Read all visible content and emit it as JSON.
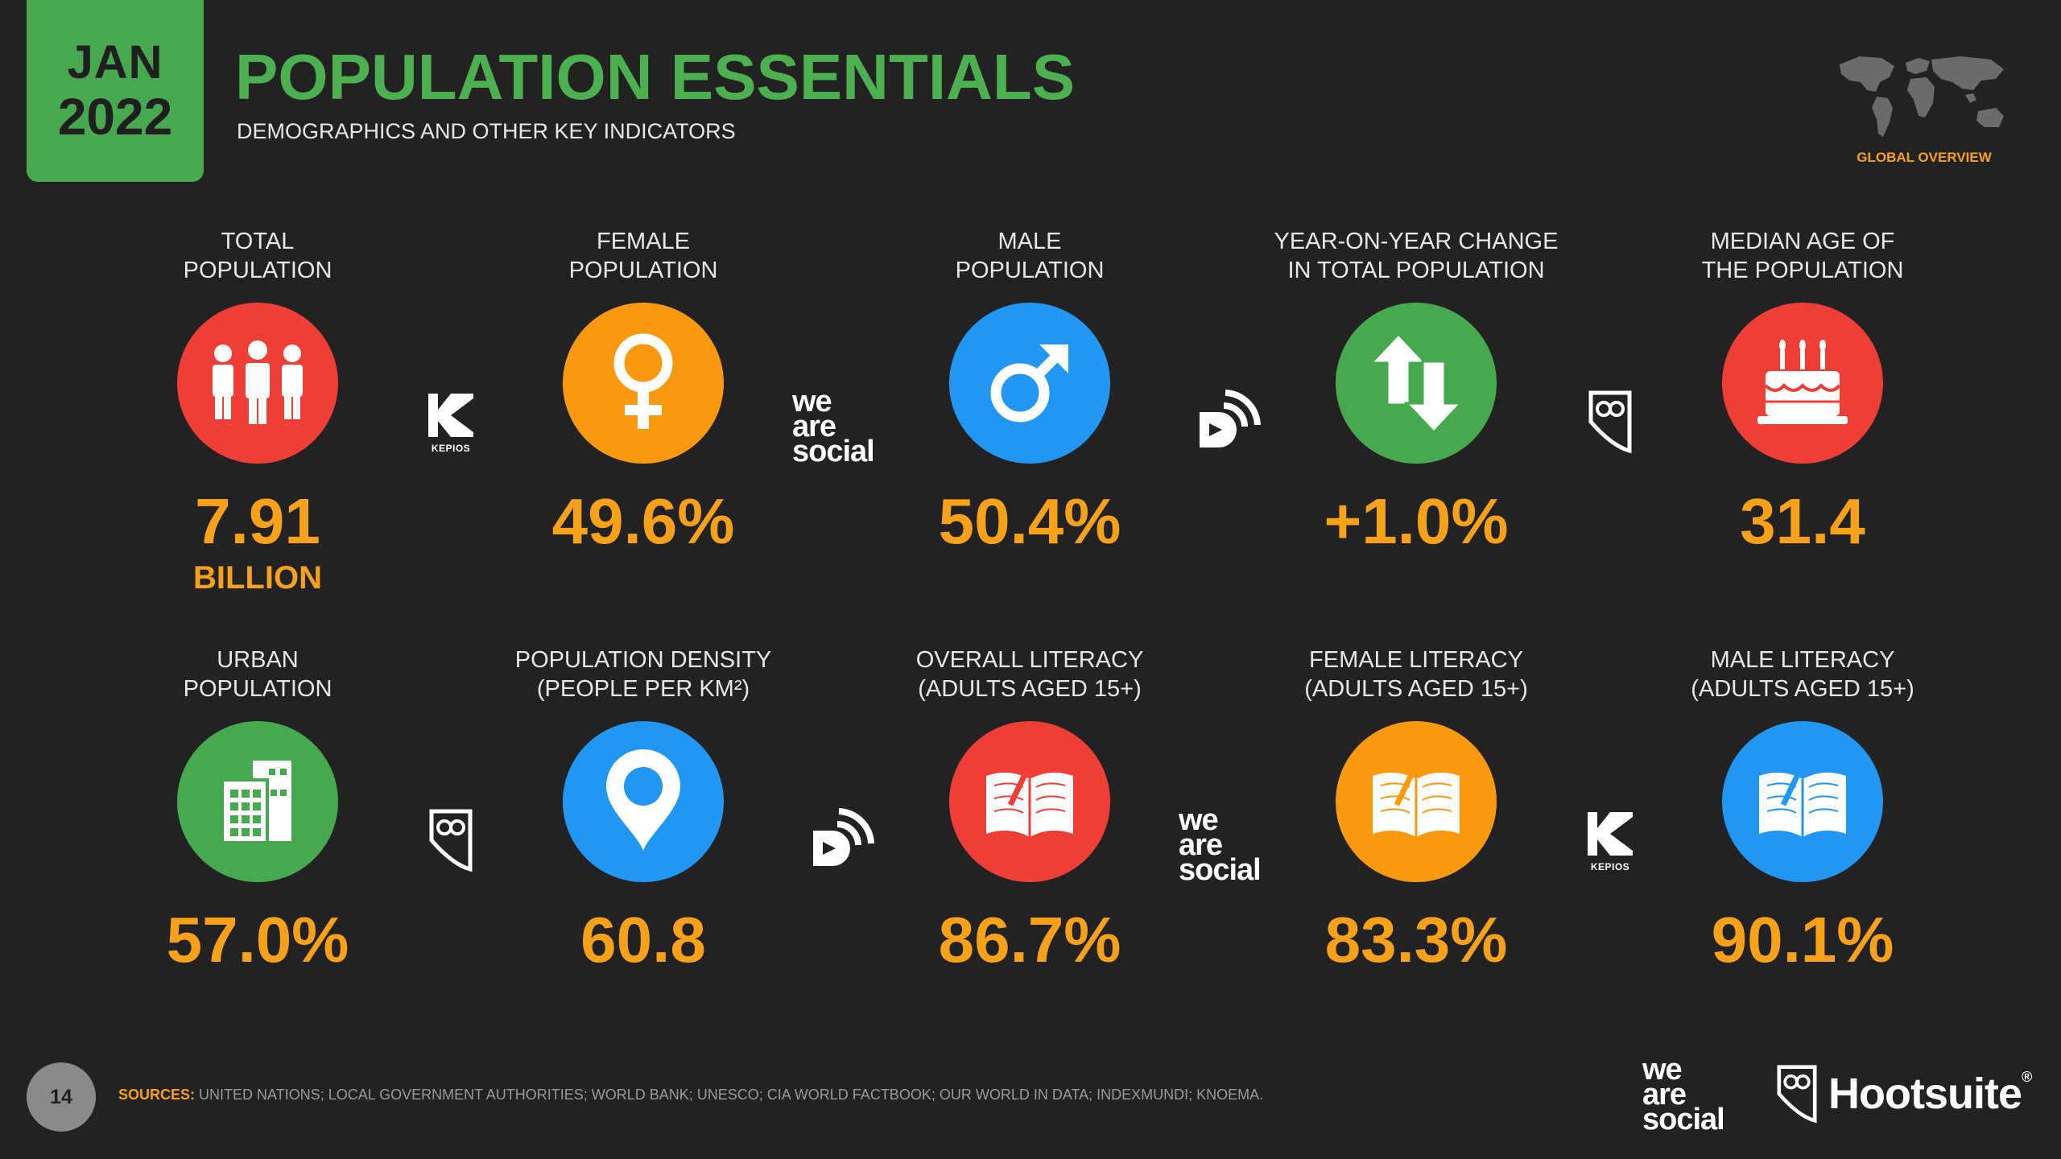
{
  "header": {
    "month": "JAN",
    "year": "2022",
    "title": "POPULATION ESSENTIALS",
    "subtitle": "DEMOGRAPHICS AND OTHER KEY INDICATORS",
    "overview_label": "GLOBAL OVERVIEW"
  },
  "colors": {
    "background": "#222222",
    "accent_green": "#46a94f",
    "value_orange": "#f7a11a",
    "red": "#ef3e36",
    "orange": "#f99a0e",
    "blue": "#2196f3",
    "green": "#46a94f"
  },
  "tiles": [
    {
      "label1": "TOTAL",
      "label2": "POPULATION",
      "value": "7.91",
      "unit": "BILLION",
      "icon": "people-icon",
      "color": "#ef3e36"
    },
    {
      "label1": "FEMALE",
      "label2": "POPULATION",
      "value": "49.6%",
      "icon": "female-symbol-icon",
      "color": "#f99a0e"
    },
    {
      "label1": "MALE",
      "label2": "POPULATION",
      "value": "50.4%",
      "icon": "male-symbol-icon",
      "color": "#2196f3"
    },
    {
      "label1": "YEAR-ON-YEAR CHANGE",
      "label2": "IN TOTAL POPULATION",
      "value": "+1.0%",
      "icon": "up-down-arrows-icon",
      "color": "#46a94f"
    },
    {
      "label1": "MEDIAN AGE OF",
      "label2": "THE POPULATION",
      "value": "31.4",
      "icon": "birthday-cake-icon",
      "color": "#ef3e36"
    },
    {
      "label1": "URBAN",
      "label2": "POPULATION",
      "value": "57.0%",
      "icon": "building-icon",
      "color": "#46a94f"
    },
    {
      "label1": "POPULATION DENSITY",
      "label2": "(PEOPLE PER KM²)",
      "value": "60.8",
      "icon": "map-pin-icon",
      "color": "#2196f3"
    },
    {
      "label1": "OVERALL LITERACY",
      "label2": "(ADULTS AGED 15+)",
      "value": "86.7%",
      "icon": "book-icon",
      "color": "#ef3e36"
    },
    {
      "label1": "FEMALE LITERACY",
      "label2": "(ADULTS AGED 15+)",
      "value": "83.3%",
      "icon": "book-icon",
      "color": "#f99a0e"
    },
    {
      "label1": "MALE LITERACY",
      "label2": "(ADULTS AGED 15+)",
      "value": "90.1%",
      "icon": "book-icon",
      "color": "#2196f3"
    }
  ],
  "logos": {
    "kepios": "KEPIOS",
    "ws_line1": "we",
    "ws_line2": "are",
    "ws_line3": "social"
  },
  "footer": {
    "page_number": "14",
    "sources_label": "SOURCES:",
    "sources_text": "UNITED NATIONS; LOCAL GOVERNMENT AUTHORITIES; WORLD BANK; UNESCO; CIA WORLD FACTBOOK; OUR WORLD IN DATA; INDEXMUNDI; KNOEMA.",
    "brand1_line1": "we",
    "brand1_line2": "are",
    "brand1_line3": "social",
    "brand2": "Hootsuite",
    "brand2_mark": "®"
  }
}
